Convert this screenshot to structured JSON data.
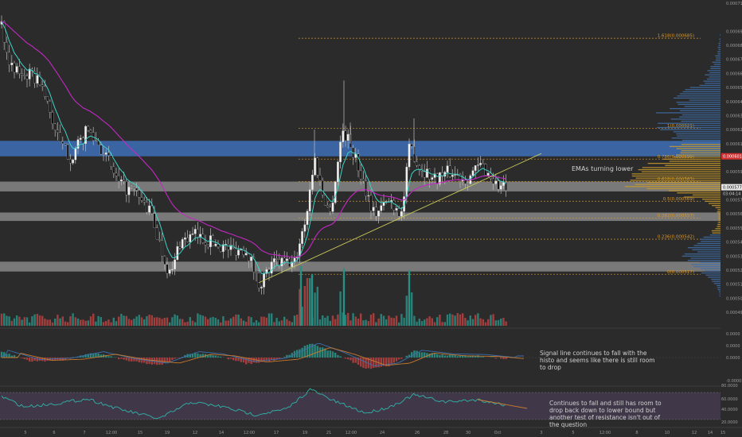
{
  "chart_data": [
    {
      "type": "candlestick",
      "panel": "price",
      "y_axis_ticks": [
        "0.000710",
        "0.000690",
        "0.000680",
        "0.000670",
        "0.000660",
        "0.000650",
        "0.000640",
        "0.000630",
        "0.000620",
        "0.000610",
        "0.000600",
        "0.000590",
        "0.000580",
        "0.000570",
        "0.000560",
        "0.000550",
        "0.000540",
        "0.000530",
        "0.000520",
        "0.000510",
        "0.000500",
        "0.000490"
      ],
      "x_axis_ticks": [
        "5",
        "6",
        "7",
        "12:00",
        "15",
        "19",
        "12",
        "14",
        "12:00",
        "17",
        "19",
        "21",
        "12:00",
        "24",
        "26",
        "28",
        "30",
        "Oct",
        "3",
        "5",
        "12:00",
        "8",
        "10",
        "12",
        "14",
        "15",
        "17"
      ],
      "price_labels": {
        "current": "0.000577",
        "countdown": "03:04:14",
        "alert": "0.000601"
      },
      "fib_levels": [
        {
          "label": "1.618(0.000685)",
          "value": 0.000685
        },
        {
          "label": "1(0.000621)",
          "value": 0.000621
        },
        {
          "label": "0.786(0.000599)",
          "value": 0.000599
        },
        {
          "label": "0.618(0.000583)",
          "value": 0.000583
        },
        {
          "label": "0.5(0.000569)",
          "value": 0.000569
        },
        {
          "label": "0.382(0.000557)",
          "value": 0.000557
        },
        {
          "label": "0.236(0.000542)",
          "value": 0.000542
        },
        {
          "label": "0(0.000517)",
          "value": 0.000517
        }
      ],
      "zones": [
        {
          "color": "blue",
          "from": 0.000601,
          "to": 0.000612
        },
        {
          "color": "gray",
          "from": 0.000576,
          "to": 0.000583
        },
        {
          "color": "gray",
          "from": 0.000555,
          "to": 0.000561
        },
        {
          "color": "gray",
          "from": 0.000519,
          "to": 0.000526
        }
      ],
      "annotation": "EMAs turning lower"
    },
    {
      "type": "histogram",
      "panel": "macd",
      "y_axis_ticks": [
        "0.0000",
        "0.0000",
        "0.0000",
        "-0.0000"
      ],
      "annotation": "Signal line continues to fall with the histo and seems like there is still room to drop"
    },
    {
      "type": "line",
      "panel": "rsi",
      "y_axis_ticks": [
        "80.0000",
        "60.0000",
        "40.0000",
        "20.0000"
      ],
      "annotation": "Continues to fall and still has room to drop back down to lower bound but another test of resistance isn't out of the question"
    }
  ],
  "colors": {
    "background": "#2b2b2b",
    "bull": "#f2f2f2",
    "bear": "#111111",
    "ema_fast": "#3bd3c7",
    "ema_slow": "#c428c4",
    "blue_zone": "#3e6fb8",
    "gray_zone": "#b9b9b9",
    "fib": "#d99a2b",
    "trend": "#c9c95a",
    "vol_up": "#2a8f84",
    "vol_down": "#b84242",
    "profile": "#c99a2a",
    "profile_blue": "#3f6ea8",
    "rsi_band": "#4a3e57",
    "alert": "#d23030",
    "axis_text": "#9a9a9a"
  }
}
